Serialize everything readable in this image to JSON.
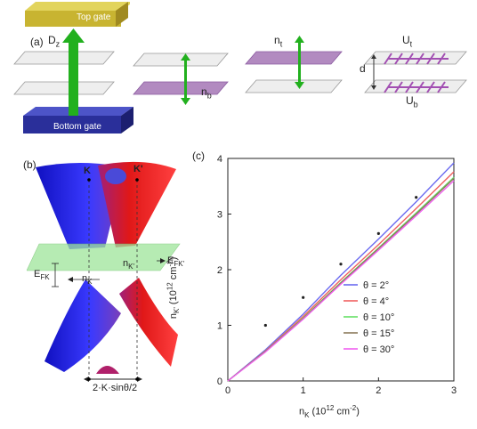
{
  "panels": {
    "a": "(a)",
    "b": "(b)",
    "c": "(c)"
  },
  "panel_a": {
    "top_gate": "Top gate",
    "bottom_gate": "Bottom gate",
    "dz_label": "D",
    "dz_sub": "z",
    "nb_label": "n",
    "nb_sub": "b",
    "nt_label": "n",
    "nt_sub": "t",
    "d_label": "d",
    "ut_label": "U",
    "ut_sub": "t",
    "ub_label": "U",
    "ub_sub": "b",
    "colors": {
      "top_gate": "#c8b431",
      "bottom_gate": "#2a2f9a",
      "arrow": "#22b01e",
      "sheet_purple": "#b28ac0",
      "sheet_gray": "#e6e6e6",
      "dipole": "#a24fb2"
    }
  },
  "panel_b": {
    "k_label": "K",
    "kprime_label": "K'",
    "efk_label": "E",
    "efk_sub": "FK",
    "efkp_label": "E",
    "efkp_sub": "FK'",
    "nk_label": "n",
    "nk_sub": "K",
    "nkp_label": "n",
    "nkp_sub": "K'",
    "bottom_label": "2·K·sinθ/2",
    "colors": {
      "left_cone": "#1414d0",
      "right_cone": "#d01818",
      "plane": "#9ee59a"
    }
  },
  "chart_data": {
    "type": "line",
    "xlabel": "n",
    "xlabel_sub": "K",
    "xlabel_unit": " (10",
    "xlabel_exp": "12",
    "xlabel_tail": " cm",
    "xlabel_exp2": "-2",
    "xlabel_end": ")",
    "ylabel": "n",
    "ylabel_sub": "K'",
    "ylabel_unit": " (10",
    "ylabel_exp": "12",
    "ylabel_tail": " cm",
    "ylabel_exp2": "-2",
    "ylabel_end": ")",
    "xlim": [
      0,
      3
    ],
    "ylim": [
      0,
      4
    ],
    "xticks": [
      "0",
      "1",
      "2",
      "3"
    ],
    "yticks": [
      "0",
      "1",
      "2",
      "3",
      "4"
    ],
    "legend_position": "bottom-right",
    "series": [
      {
        "name": "θ = 2°",
        "color": "#6a6af0",
        "x": [
          0,
          0.5,
          1.0,
          1.5,
          2.0,
          2.5,
          3.0
        ],
        "y": [
          0,
          0.56,
          1.2,
          1.9,
          2.55,
          3.22,
          3.92
        ]
      },
      {
        "name": "θ = 4°",
        "color": "#f06060",
        "x": [
          0,
          0.5,
          1.0,
          1.5,
          2.0,
          2.5,
          3.0
        ],
        "y": [
          0,
          0.54,
          1.16,
          1.82,
          2.45,
          3.1,
          3.76
        ]
      },
      {
        "name": "θ = 10°",
        "color": "#66e066",
        "x": [
          0,
          0.5,
          1.0,
          1.5,
          2.0,
          2.5,
          3.0
        ],
        "y": [
          0,
          0.53,
          1.13,
          1.77,
          2.39,
          3.02,
          3.66
        ]
      },
      {
        "name": "θ = 15°",
        "color": "#8a7a5a",
        "x": [
          0,
          0.5,
          1.0,
          1.5,
          2.0,
          2.5,
          3.0
        ],
        "y": [
          0,
          0.53,
          1.12,
          1.76,
          2.38,
          3.0,
          3.64
        ]
      },
      {
        "name": "θ = 30°",
        "color": "#f060f0",
        "x": [
          0,
          0.5,
          1.0,
          1.5,
          2.0,
          2.5,
          3.0
        ],
        "y": [
          0,
          0.52,
          1.11,
          1.74,
          2.35,
          2.97,
          3.6
        ]
      }
    ],
    "markers": {
      "x": [
        0.5,
        1.0,
        1.5,
        2.0,
        2.5
      ],
      "y": [
        1.0,
        1.5,
        2.1,
        2.65,
        3.3
      ]
    }
  }
}
